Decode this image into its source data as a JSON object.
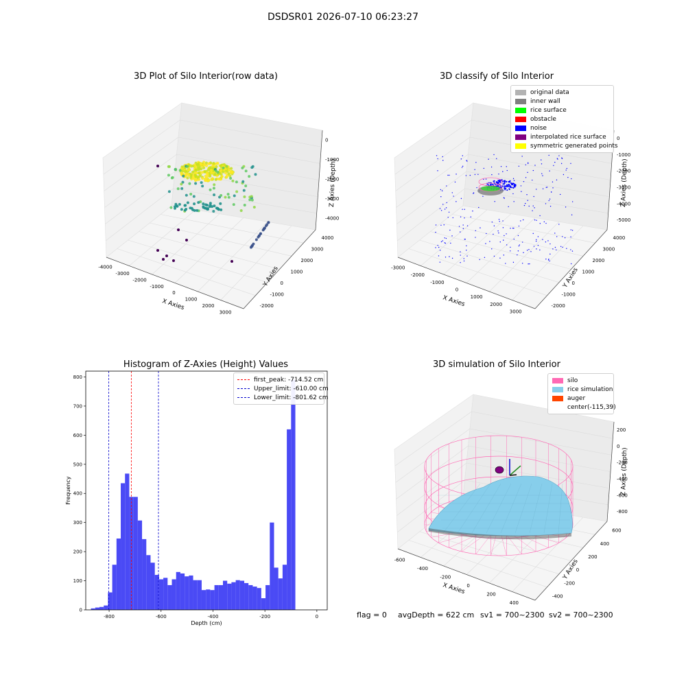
{
  "suptitle": "DSDSR01 2026-07-10 06:23:27",
  "chart_data": [
    {
      "type": "scatter",
      "title": "3D Plot of Silo Interior(row data)",
      "xlabel": "X Axies",
      "ylabel": "Y Axies",
      "zlabel": "Z Axies (Depth)",
      "x_ticks": [
        "-4000",
        "-3000",
        "-2000",
        "-1000",
        "0",
        "1000",
        "2000",
        "3000"
      ],
      "y_ticks": [
        "-2000",
        "-1000",
        "0",
        "1000",
        "2000",
        "3000",
        "4000"
      ],
      "z_ticks": [
        "0",
        "-1000",
        "-2000",
        "-3000",
        "-4000"
      ],
      "colormap": "viridis"
    },
    {
      "type": "scatter",
      "title": "3D classify of Silo Interior",
      "xlabel": "X Axies",
      "ylabel": "Y Axies",
      "zlabel": "Z Axies (Depth)",
      "x_ticks": [
        "-3000",
        "-2000",
        "-1000",
        "0",
        "1000",
        "2000",
        "3000"
      ],
      "y_ticks": [
        "-2000",
        "-1000",
        "0",
        "1000",
        "2000",
        "3000",
        "4000"
      ],
      "z_ticks": [
        "0",
        "-1000",
        "-2000",
        "-3000",
        "-4000",
        "-5000"
      ],
      "legend_position": "top-right",
      "legend": [
        {
          "label": "original data",
          "color": "#b3b3b3"
        },
        {
          "label": "inner wall",
          "color": "#808080"
        },
        {
          "label": "rice surface",
          "color": "#00ff00"
        },
        {
          "label": "obstacle",
          "color": "#ff0000"
        },
        {
          "label": "noise",
          "color": "#0000ff"
        },
        {
          "label": "interpolated rice surface",
          "color": "#800080"
        },
        {
          "label": "symmetric generated points",
          "color": "#ffff00"
        }
      ]
    },
    {
      "type": "bar",
      "title": "Histogram of Z-Axies (Height) Values",
      "xlabel": "Depth (cm)",
      "ylabel": "Frequency",
      "xlim": [
        -890,
        40
      ],
      "ylim": [
        0,
        820
      ],
      "x_ticks": [
        "-800",
        "-600",
        "-400",
        "-200",
        "0"
      ],
      "y_ticks": [
        "0",
        "100",
        "200",
        "300",
        "400",
        "500",
        "600",
        "700",
        "800"
      ],
      "bin_width": 16.4,
      "bin_start": -870,
      "values": [
        5,
        8,
        10,
        15,
        60,
        155,
        245,
        435,
        468,
        388,
        388,
        307,
        243,
        188,
        162,
        120,
        105,
        110,
        85,
        105,
        130,
        125,
        115,
        118,
        102,
        102,
        68,
        70,
        68,
        85,
        85,
        100,
        90,
        95,
        102,
        100,
        92,
        85,
        80,
        75,
        40,
        85,
        300,
        145,
        108,
        155,
        620,
        790
      ],
      "bar_color": "#4a4af5",
      "vlines": [
        {
          "label": "first_peak: -714.52 cm",
          "x": -714.52,
          "color": "#ff0000"
        },
        {
          "label": "Upper_limit: -610.00 cm",
          "x": -610.0,
          "color": "#0000cc"
        },
        {
          "label": "Lower_limit: -801.62 cm",
          "x": -801.62,
          "color": "#0000cc"
        }
      ],
      "legend_position": "top-right"
    },
    {
      "type": "surface",
      "title": "3D simulation of Silo Interior",
      "xlabel": "X Axies",
      "ylabel": "Y Axies",
      "zlabel": "Z Axies (Depth)",
      "x_ticks": [
        "-600",
        "-400",
        "-200",
        "0",
        "200",
        "400"
      ],
      "y_ticks": [
        "-400",
        "-200",
        "0",
        "200",
        "400",
        "600"
      ],
      "z_ticks": [
        "200",
        "0",
        "-200",
        "-400",
        "-600",
        "-800"
      ],
      "legend_position": "top-right",
      "legend": [
        {
          "label": "silo",
          "color": "#ff69b4"
        },
        {
          "label": "rice simulation",
          "color": "#87ceeb"
        },
        {
          "label": "auger",
          "color": "#ff4500"
        },
        {
          "label": "center(-115,39)",
          "color": "none"
        }
      ]
    }
  ],
  "footer": {
    "flag": "flag = 0",
    "avg_depth": "avgDepth = 622 cm",
    "sv1": "sv1 = 700~2300",
    "sv2": "sv2 = 700~2300"
  }
}
